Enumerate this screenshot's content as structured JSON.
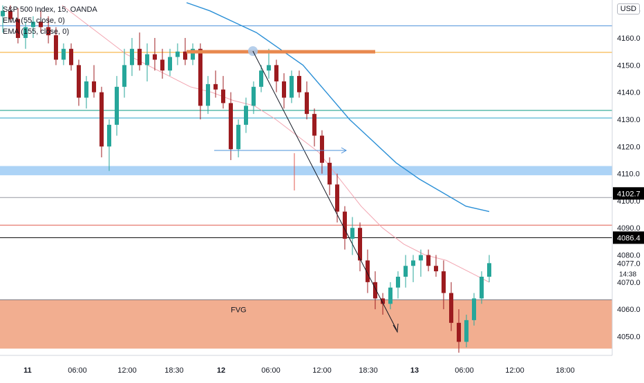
{
  "chart_data": {
    "type": "candlestick",
    "symbol_line": "S&P 500 Index, 15, OANDA",
    "indicators": [
      "EMA (55, close, 0)",
      "EMA (155, close, 0)"
    ],
    "currency": "USD",
    "x_ticks": [
      "11",
      "06:00",
      "12:00",
      "18:30",
      "12",
      "06:00",
      "12:00",
      "18:30",
      "13",
      "06:00",
      "12:00",
      "18:00"
    ],
    "y_ticks": [
      4170,
      4160,
      4150,
      4140,
      4130,
      4120,
      4110,
      4100,
      4090,
      4080,
      4070,
      4060,
      4050
    ],
    "y_tick_labels": [
      "4170.0",
      "4160.0",
      "4150.0",
      "4140.0",
      "4130.0",
      "4120.0",
      "4110.0",
      "4100.0",
      "4090.0",
      "4080.0",
      "4070.0",
      "4060.0",
      "4050.0"
    ],
    "ylim": [
      4043,
      4174
    ],
    "price_labels": [
      {
        "value": 4102.7,
        "text": "4102.7",
        "color": "#000000"
      },
      {
        "value": 4086.4,
        "text": "4086.4",
        "color": "#000000"
      }
    ],
    "last_price": {
      "value": 4077.0,
      "text": "4077.0",
      "countdown": "14:38"
    },
    "horizontal_lines": [
      {
        "value": 4164.5,
        "color": "#4a90d9"
      },
      {
        "value": 4154.7,
        "color": "#f5a623"
      },
      {
        "value": 4133.3,
        "color": "#089981"
      },
      {
        "value": 4130.5,
        "color": "#2aa3c9"
      },
      {
        "value": 4101.2,
        "color": "#9598a1"
      },
      {
        "value": 4091.0,
        "color": "#e05a4f"
      },
      {
        "value": 4086.4,
        "color": "#000000"
      },
      {
        "value": 4063.5,
        "color": "#787b86"
      }
    ],
    "zones": [
      {
        "y_top": 4112.8,
        "y_bottom": 4109.4,
        "color": "#90c4f3"
      },
      {
        "y_top": 4063.5,
        "y_bottom": 4045.5,
        "color": "#f0a07c",
        "label": "FVG"
      }
    ],
    "colors": {
      "up": "#26a69a",
      "down": "#9c1b1f",
      "ema55": "#f2a4b0",
      "ema155": "#2a8fd6"
    },
    "series": [
      {
        "name": "OHLC",
        "values": [
          [
            4168,
            4172,
            4162,
            4170
          ],
          [
            4170,
            4172,
            4166,
            4167
          ],
          [
            4167,
            4171,
            4158,
            4160
          ],
          [
            4160,
            4166,
            4156,
            4164
          ],
          [
            4164,
            4168,
            4160,
            4166
          ],
          [
            4166,
            4170,
            4162,
            4164
          ],
          [
            4164,
            4168,
            4158,
            4161
          ],
          [
            4161,
            4164,
            4150,
            4152
          ],
          [
            4152,
            4158,
            4150,
            4156
          ],
          [
            4156,
            4158,
            4148,
            4150
          ],
          [
            4150,
            4152,
            4135,
            4138
          ],
          [
            4138,
            4146,
            4134,
            4144
          ],
          [
            4144,
            4150,
            4138,
            4140
          ],
          [
            4140,
            4142,
            4116,
            4120
          ],
          [
            4120,
            4130,
            4111,
            4128
          ],
          [
            4128,
            4146,
            4124,
            4142
          ],
          [
            4142,
            4156,
            4138,
            4150
          ],
          [
            4150,
            4160,
            4146,
            4156
          ],
          [
            4156,
            4162,
            4148,
            4150
          ],
          [
            4150,
            4158,
            4144,
            4154
          ],
          [
            4154,
            4160,
            4148,
            4152
          ],
          [
            4152,
            4156,
            4145,
            4148
          ],
          [
            4148,
            4156,
            4146,
            4153
          ],
          [
            4153,
            4158,
            4150,
            4155
          ],
          [
            4155,
            4160,
            4150,
            4152
          ],
          [
            4152,
            4158,
            4150,
            4156
          ],
          [
            4156,
            4158,
            4130,
            4135
          ],
          [
            4135,
            4146,
            4132,
            4143
          ],
          [
            4143,
            4148,
            4138,
            4141
          ],
          [
            4141,
            4146,
            4134,
            4136
          ],
          [
            4136,
            4140,
            4115,
            4119
          ],
          [
            4119,
            4130,
            4116,
            4128
          ],
          [
            4128,
            4138,
            4125,
            4135
          ],
          [
            4135,
            4144,
            4132,
            4142
          ],
          [
            4142,
            4150,
            4140,
            4148
          ],
          [
            4148,
            4156,
            4145,
            4150
          ],
          [
            4150,
            4152,
            4140,
            4144
          ],
          [
            4144,
            4147,
            4134,
            4138
          ],
          [
            4138,
            4148,
            4136,
            4146
          ],
          [
            4146,
            4148,
            4138,
            4140
          ],
          [
            4140,
            4144,
            4130,
            4132
          ],
          [
            4132,
            4134,
            4120,
            4124
          ],
          [
            4124,
            4126,
            4110,
            4114
          ],
          [
            4114,
            4116,
            4102,
            4106
          ],
          [
            4106,
            4110,
            4092,
            4096
          ],
          [
            4096,
            4098,
            4082,
            4086
          ],
          [
            4086,
            4094,
            4080,
            4090
          ],
          [
            4090,
            4092,
            4074,
            4078
          ],
          [
            4078,
            4082,
            4066,
            4070
          ],
          [
            4070,
            4074,
            4060,
            4064
          ],
          [
            4064,
            4066,
            4058,
            4062
          ],
          [
            4062,
            4070,
            4060,
            4068
          ],
          [
            4068,
            4074,
            4064,
            4072
          ],
          [
            4072,
            4080,
            4068,
            4076
          ],
          [
            4076,
            4080,
            4070,
            4078
          ],
          [
            4078,
            4082,
            4072,
            4080
          ],
          [
            4080,
            4082,
            4074,
            4076
          ],
          [
            4076,
            4080,
            4072,
            4074
          ],
          [
            4074,
            4078,
            4060,
            4066
          ],
          [
            4066,
            4070,
            4052,
            4055
          ],
          [
            4055,
            4060,
            4044,
            4048
          ],
          [
            4048,
            4058,
            4046,
            4056
          ],
          [
            4056,
            4066,
            4054,
            4064
          ],
          [
            4064,
            4074,
            4062,
            4072
          ],
          [
            4072,
            4080,
            4070,
            4077
          ]
        ]
      },
      {
        "name": "EMA (55, close, 0)",
        "values": [
          4172,
          4166,
          4160,
          4154,
          4150,
          4146,
          4142,
          4140,
          4137,
          4135,
          4130,
          4124,
          4118,
          4108,
          4098,
          4090,
          4084,
          4080,
          4078,
          4074,
          4070
        ]
      },
      {
        "name": "EMA (155, close, 0)",
        "values": [
          4173,
          4170,
          4166,
          4162,
          4156,
          4150,
          4140,
          4130,
          4122,
          4114,
          4108,
          4103,
          4098,
          4096
        ]
      }
    ],
    "annotations": [
      {
        "type": "arrow",
        "text": ""
      },
      {
        "type": "text",
        "text": "FVG"
      }
    ]
  }
}
